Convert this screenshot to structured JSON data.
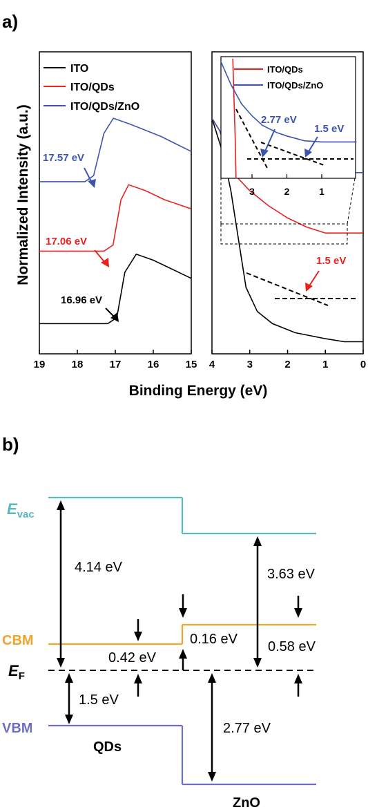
{
  "panel_a": {
    "label": "a)",
    "ylabel": "Normalized Intensity (a.u.)",
    "xlabel": "Binding Energy (eV)",
    "legend": [
      "ITO",
      "ITO/QDs",
      "ITO/QDs/ZnO"
    ],
    "inset_legend": [
      "ITO/QDs",
      "ITO/QDs/ZnO"
    ],
    "annotations": {
      "ito_cutoff": "16.96 eV",
      "qds_cutoff": "17.06 eV",
      "zno_cutoff": "17.57 eV",
      "qds_onset": "1.5 eV",
      "inset_zno_onset": "2.77 eV",
      "inset_qds_onset": "1.5 eV"
    }
  },
  "panel_b": {
    "label": "b)",
    "evac": "E",
    "evac_sub": "vac",
    "ef": "E",
    "ef_sub": "F",
    "cbm": "CBM",
    "vbm": "VBM",
    "qds": "QDs",
    "zno": "ZnO",
    "v_414": "4.14 eV",
    "v_363": "3.63 eV",
    "v_016": "0.16 eV",
    "v_042": "0.42 eV",
    "v_058": "0.58 eV",
    "v_15": "1.5 eV",
    "v_277": "2.77 eV"
  },
  "chart_data": [
    {
      "type": "line",
      "panel": "secondary-electron cutoff (left)",
      "xlabel": "Binding Energy (eV)",
      "ylabel": "Normalized Intensity (a.u.)",
      "xlim": [
        19,
        15
      ],
      "xticks": [
        19,
        18,
        17,
        16,
        15
      ],
      "colors": {
        "ITO": "#000000",
        "ITO/QDs": "#e8211d",
        "ITO/QDs/ZnO": "#3b55b0"
      },
      "series": [
        {
          "name": "ITO",
          "cutoff": 16.96,
          "x": [
            19.0,
            17.2,
            16.96,
            16.75,
            16.45,
            16.0,
            15.5,
            15.0
          ],
          "y": [
            0.1,
            0.1,
            0.12,
            0.27,
            0.33,
            0.31,
            0.28,
            0.25
          ]
        },
        {
          "name": "ITO/QDs",
          "cutoff": 17.06,
          "x": [
            19.0,
            17.3,
            17.06,
            16.85,
            16.65,
            16.2,
            15.7,
            15.0
          ],
          "y": [
            0.34,
            0.34,
            0.36,
            0.51,
            0.56,
            0.54,
            0.51,
            0.48
          ]
        },
        {
          "name": "ITO/QDs/ZnO",
          "cutoff": 17.57,
          "x": [
            19.0,
            17.8,
            17.57,
            17.3,
            17.05,
            16.6,
            15.8,
            15.0
          ],
          "y": [
            0.57,
            0.57,
            0.59,
            0.73,
            0.78,
            0.76,
            0.72,
            0.67
          ]
        }
      ]
    },
    {
      "type": "line",
      "panel": "valence band onset (right)",
      "xlim": [
        4,
        0
      ],
      "xticks": [
        4,
        3,
        2,
        1,
        0
      ],
      "onset_eV": {
        "ITO/QDs": 1.5
      },
      "series": [
        {
          "name": "ITO",
          "x": [
            4.0,
            3.7,
            3.5,
            3.3,
            3.1,
            2.8,
            2.4,
            1.8,
            1.0,
            0.5,
            0.0
          ],
          "y": [
            0.78,
            0.66,
            0.54,
            0.38,
            0.22,
            0.14,
            0.1,
            0.07,
            0.05,
            0.04,
            0.04
          ]
        },
        {
          "name": "ITO/QDs",
          "x": [
            4.0,
            3.7,
            3.5,
            3.3,
            3.0,
            2.5,
            2.0,
            1.5,
            1.0,
            0.5,
            0.0
          ],
          "y": [
            0.78,
            0.72,
            0.64,
            0.58,
            0.54,
            0.49,
            0.45,
            0.42,
            0.4,
            0.4,
            0.4
          ]
        },
        {
          "name": "ITO/QDs/ZnO",
          "x": [
            4.0,
            3.8,
            3.6,
            3.3,
            3.0,
            2.5,
            2.0,
            1.5,
            1.0,
            0.5,
            0.0
          ],
          "y": [
            0.78,
            0.74,
            0.67,
            0.64,
            0.63,
            0.62,
            0.61,
            0.61,
            0.6,
            0.6,
            0.6
          ]
        }
      ]
    },
    {
      "type": "line",
      "panel": "inset (zoom of dashed box)",
      "xticks": [
        3,
        2,
        1
      ],
      "onset_eV": {
        "ITO/QDs/ZnO": [
          2.77,
          1.5
        ]
      },
      "series": [
        {
          "name": "ITO/QDs",
          "x": [
            3.55,
            3.48,
            3.46
          ],
          "y": [
            1.0,
            0.3,
            0.0
          ]
        },
        {
          "name": "ITO/QDs/ZnO",
          "x": [
            3.9,
            3.6,
            3.3,
            3.0,
            2.7,
            2.3,
            2.0,
            1.5,
            1.0,
            0.5,
            0.0
          ],
          "y": [
            0.98,
            0.78,
            0.62,
            0.52,
            0.44,
            0.38,
            0.35,
            0.31,
            0.3,
            0.3,
            0.3
          ]
        }
      ]
    }
  ]
}
